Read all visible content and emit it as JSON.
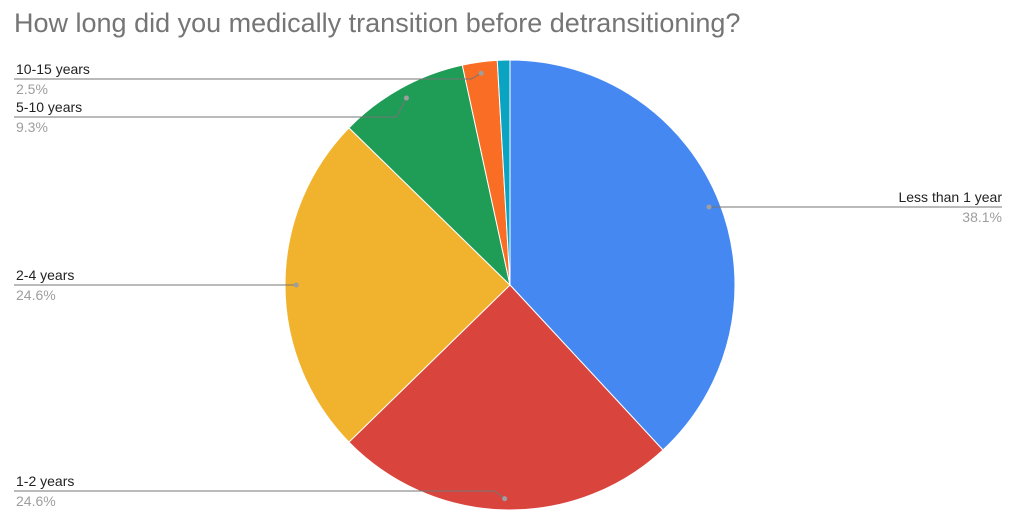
{
  "chart_data": {
    "type": "pie",
    "title": "How long did you medically transition before detransitioning?",
    "start_angle_deg": 0,
    "slices": [
      {
        "label": "Less than 1 year",
        "value": 38.1,
        "value_label": "38.1%",
        "color": "#4688f1",
        "show_label": true
      },
      {
        "label": "1-2 years",
        "value": 24.6,
        "value_label": "24.6%",
        "color": "#d9453d",
        "show_label": true
      },
      {
        "label": "2-4 years",
        "value": 24.6,
        "value_label": "24.6%",
        "color": "#f1b32d",
        "show_label": true
      },
      {
        "label": "5-10 years",
        "value": 9.3,
        "value_label": "9.3%",
        "color": "#1f9d57",
        "show_label": true
      },
      {
        "label": "10-15 years",
        "value": 2.5,
        "value_label": "2.5%",
        "color": "#fa6d24",
        "show_label": true
      },
      {
        "label": "",
        "value": 0.9,
        "value_label": "",
        "color": "#0aa3c2",
        "show_label": false
      }
    ]
  }
}
